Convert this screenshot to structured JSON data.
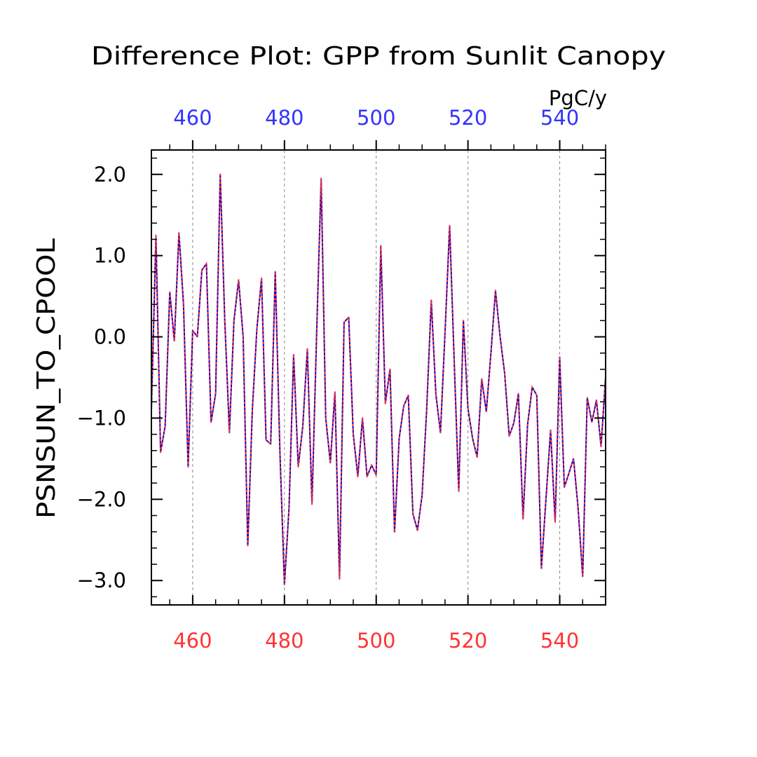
{
  "chart_data": {
    "type": "line",
    "title": "Difference Plot: GPP from Sunlit Canopy",
    "ylabel": "PSNSUN_TO_CPOOL",
    "units": "PgC/y",
    "xlim": [
      451,
      550
    ],
    "ylim": [
      -3.3,
      2.3
    ],
    "x_ticks": [
      460,
      480,
      500,
      520,
      540
    ],
    "x_tick_labels": [
      "460",
      "480",
      "500",
      "520",
      "540"
    ],
    "y_ticks": [
      2.0,
      1.0,
      0.0,
      -1.0,
      -2.0,
      -3.0
    ],
    "y_tick_labels": [
      "2.0",
      "1.0",
      "0.0",
      "−1.0",
      "−2.0",
      "−3.0"
    ],
    "grid": "vertical dashed at major x ticks",
    "colors": {
      "bottom_axis_labels": "#ff3333",
      "top_axis_labels": "#3333ff",
      "line_a": "#0000cc",
      "line_b": "#ff3333",
      "axis": "#000000",
      "grid": "#888888"
    },
    "series": [
      {
        "values_x": [
          451,
          452,
          453,
          454,
          455,
          456,
          457,
          458,
          459,
          460,
          461,
          462,
          463,
          464,
          465,
          466,
          467,
          468,
          469,
          470,
          471,
          472,
          473,
          474,
          475,
          476,
          477,
          478,
          479,
          480,
          481,
          482,
          483,
          484,
          485,
          486,
          487,
          488,
          489,
          490,
          491,
          492,
          493,
          494,
          495,
          496,
          497,
          498,
          499,
          500,
          501,
          502,
          503,
          504,
          505,
          506,
          507,
          508,
          509,
          510,
          511,
          512,
          513,
          514,
          515,
          516,
          517,
          518,
          519,
          520,
          521,
          522,
          523,
          524,
          525,
          526,
          527,
          528,
          529,
          530,
          531,
          532,
          533,
          534,
          535,
          536,
          537,
          538,
          539,
          540,
          541,
          542,
          543,
          544,
          545,
          546,
          547,
          548,
          549,
          550
        ],
        "values_y": [
          -0.9,
          1.25,
          -1.42,
          -1.1,
          0.55,
          -0.05,
          1.28,
          0.4,
          -1.6,
          0.08,
          0.0,
          0.82,
          0.9,
          -1.05,
          -0.7,
          2.0,
          0.2,
          -1.18,
          0.2,
          0.7,
          0.0,
          -2.57,
          -0.9,
          0.1,
          0.72,
          -1.27,
          -1.32,
          0.8,
          -1.4,
          -3.05,
          -2.1,
          -0.22,
          -1.6,
          -1.1,
          -0.15,
          -2.06,
          0.0,
          1.95,
          -1.0,
          -1.55,
          -0.68,
          -2.98,
          0.18,
          0.24,
          -1.2,
          -1.72,
          -1.0,
          -1.72,
          -1.58,
          -1.7,
          1.12,
          -0.82,
          -0.4,
          -2.4,
          -1.25,
          -0.85,
          -0.72,
          -2.18,
          -2.38,
          -1.95,
          -0.9,
          0.45,
          -0.7,
          -1.18,
          0.05,
          1.37,
          -0.3,
          -1.9,
          0.2,
          -0.88,
          -1.25,
          -1.48,
          -0.52,
          -0.92,
          -0.2,
          0.57,
          0.0,
          -0.45,
          -1.22,
          -1.06,
          -0.7,
          -2.24,
          -1.08,
          -0.62,
          -0.72,
          -2.85,
          -2.0,
          -1.15,
          -2.28,
          -0.25,
          -1.85,
          -1.68,
          -1.5,
          -2.1,
          -2.95,
          -0.75,
          -1.05,
          -0.78,
          -1.35,
          -0.5
        ]
      }
    ]
  }
}
